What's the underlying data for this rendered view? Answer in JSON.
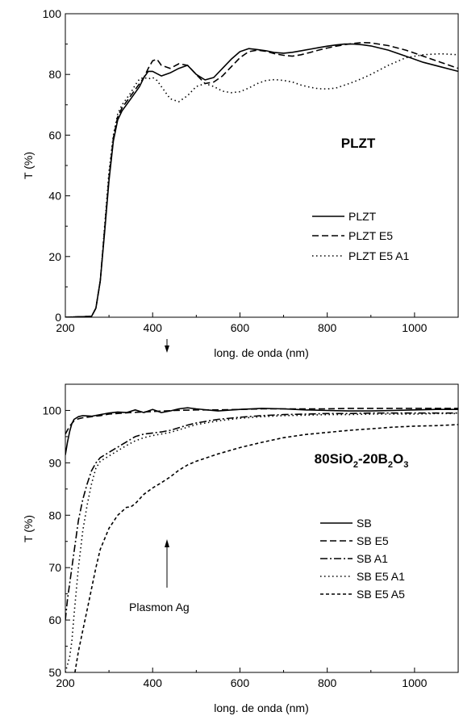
{
  "chart_data": [
    {
      "type": "line",
      "title": "PLZT",
      "xlabel": "long. de onda (nm)",
      "ylabel": "T (%)",
      "xlim": [
        200,
        1100
      ],
      "ylim": [
        0,
        100
      ],
      "xticks": [
        200,
        400,
        600,
        800,
        1000
      ],
      "yticks": [
        0,
        20,
        40,
        60,
        80,
        100
      ],
      "grid": false,
      "legend_position": "center-right",
      "annotations": [],
      "series": [
        {
          "name": "PLZT",
          "style": "solid",
          "x": [
            200,
            260,
            270,
            280,
            290,
            300,
            310,
            320,
            330,
            340,
            350,
            360,
            370,
            380,
            390,
            400,
            420,
            440,
            460,
            480,
            500,
            520,
            540,
            560,
            580,
            600,
            620,
            640,
            660,
            680,
            700,
            720,
            740,
            760,
            780,
            800,
            820,
            840,
            860,
            880,
            900,
            940,
            980,
            1020,
            1060,
            1100
          ],
          "y": [
            0,
            0.3,
            3,
            12,
            28,
            45,
            58,
            65,
            68,
            70,
            72,
            74,
            76,
            79,
            81,
            81,
            79.5,
            80.5,
            82,
            83,
            80,
            78.2,
            79,
            82,
            85,
            87.5,
            88.5,
            88.2,
            87.8,
            87.2,
            87,
            87.3,
            87.8,
            88.3,
            88.8,
            89.3,
            89.7,
            90,
            90,
            89.8,
            89.4,
            88,
            86,
            84,
            82.5,
            81
          ]
        },
        {
          "name": "PLZT E5",
          "style": "dashed",
          "x": [
            200,
            260,
            270,
            280,
            290,
            300,
            310,
            320,
            330,
            340,
            350,
            360,
            370,
            380,
            390,
            400,
            410,
            420,
            440,
            460,
            480,
            500,
            520,
            540,
            560,
            580,
            600,
            620,
            640,
            660,
            680,
            700,
            720,
            740,
            760,
            780,
            800,
            820,
            840,
            860,
            880,
            900,
            940,
            980,
            1020,
            1060,
            1100
          ],
          "y": [
            0,
            0.3,
            3,
            12,
            29,
            46,
            59,
            66,
            69,
            71,
            73,
            75,
            77,
            79,
            82,
            84.5,
            85,
            83,
            82,
            83.5,
            83,
            80,
            77,
            77.5,
            79.5,
            82.5,
            85.5,
            87.5,
            88,
            87.6,
            86.8,
            86.3,
            86,
            86.5,
            87.2,
            88,
            88.7,
            89.3,
            89.8,
            90.2,
            90.5,
            90.4,
            89.5,
            88,
            86,
            84,
            82
          ]
        },
        {
          "name": "PLZT E5 A1",
          "style": "dotted",
          "x": [
            200,
            260,
            270,
            280,
            290,
            300,
            310,
            320,
            330,
            340,
            350,
            360,
            370,
            380,
            390,
            400,
            410,
            420,
            440,
            460,
            480,
            500,
            520,
            540,
            560,
            580,
            600,
            620,
            640,
            660,
            680,
            700,
            720,
            740,
            760,
            780,
            800,
            820,
            840,
            860,
            880,
            900,
            940,
            980,
            1020,
            1060,
            1100
          ],
          "y": [
            0,
            0.3,
            3,
            12,
            30,
            48,
            60,
            67,
            70,
            72,
            74,
            76.5,
            78.5,
            79,
            78.5,
            79,
            78,
            76,
            72,
            71,
            73,
            76,
            77,
            76,
            74.5,
            74,
            74.3,
            75.5,
            77,
            78,
            78.3,
            78,
            77.5,
            76.5,
            75.8,
            75.3,
            75.2,
            75.5,
            76.5,
            77.5,
            78.7,
            80,
            83,
            85.5,
            86.5,
            86.8,
            86.5
          ]
        }
      ]
    },
    {
      "type": "line",
      "title": "80SiO2-20B2O3",
      "xlabel": "long. de onda (nm)",
      "ylabel": "T (%)",
      "xlim": [
        200,
        1100
      ],
      "ylim": [
        50,
        105
      ],
      "xticks": [
        200,
        400,
        600,
        800,
        1000
      ],
      "yticks": [
        50,
        60,
        70,
        80,
        90,
        100
      ],
      "grid": false,
      "legend_position": "center-right",
      "annotations": [
        "Plasmon Ag"
      ],
      "series": [
        {
          "name": "SB",
          "style": "solid",
          "x": [
            200,
            205,
            210,
            215,
            220,
            230,
            240,
            260,
            280,
            300,
            320,
            340,
            360,
            380,
            400,
            420,
            440,
            460,
            480,
            500,
            550,
            600,
            650,
            700,
            750,
            800,
            850,
            900,
            950,
            1000,
            1050,
            1100
          ],
          "y": [
            91.5,
            94,
            96,
            97.5,
            98.3,
            98.8,
            99,
            98.9,
            99.2,
            99.5,
            99.7,
            99.6,
            100.1,
            99.6,
            100.2,
            99.6,
            99.9,
            100.3,
            100.5,
            100.3,
            99.9,
            100.2,
            100.4,
            100.3,
            100.1,
            100,
            99.9,
            99.9,
            100,
            100.1,
            100.2,
            100.2
          ]
        },
        {
          "name": "SB E5",
          "style": "dashed",
          "x": [
            200,
            210,
            220,
            230,
            240,
            260,
            280,
            300,
            350,
            400,
            450,
            500,
            550,
            600,
            650,
            700,
            750,
            800,
            850,
            900,
            950,
            1000,
            1050,
            1100
          ],
          "y": [
            95.5,
            97,
            98,
            98.4,
            98.6,
            98.8,
            99,
            99.3,
            99.6,
            99.8,
            100,
            100.1,
            100.1,
            100.2,
            100.3,
            100.3,
            100.3,
            100.3,
            100.4,
            100.4,
            100.4,
            100.4,
            100.4,
            100.4
          ]
        },
        {
          "name": "SB A1",
          "style": "dashdot",
          "x": [
            200,
            205,
            210,
            215,
            220,
            230,
            240,
            250,
            260,
            270,
            280,
            300,
            320,
            340,
            360,
            380,
            400,
            420,
            440,
            460,
            480,
            500,
            550,
            600,
            650,
            700,
            750,
            800,
            850,
            900,
            950,
            1000,
            1050,
            1100
          ],
          "y": [
            60,
            64,
            67,
            70,
            73,
            79,
            83,
            86,
            88.5,
            90,
            91,
            92,
            93,
            94,
            95,
            95.5,
            95.7,
            95.9,
            96.2,
            96.7,
            97.2,
            97.6,
            98.3,
            98.7,
            99,
            99.2,
            99.3,
            99.4,
            99.4,
            99.5,
            99.5,
            99.5,
            99.5,
            99.5
          ]
        },
        {
          "name": "SB E5 A1",
          "style": "dotted",
          "x": [
            200,
            210,
            215,
            220,
            230,
            240,
            250,
            260,
            270,
            280,
            300,
            320,
            340,
            360,
            380,
            400,
            420,
            440,
            460,
            480,
            500,
            550,
            600,
            650,
            700,
            750,
            800,
            850,
            900,
            950,
            1000,
            1050,
            1100
          ],
          "y": [
            50,
            53,
            56,
            61,
            70,
            77,
            82,
            86,
            89,
            90.3,
            91.3,
            92.3,
            93.3,
            94.2,
            94.8,
            95.2,
            95.5,
            95.8,
            96.3,
            96.8,
            97.3,
            98,
            98.5,
            98.8,
            99,
            99.1,
            99.2,
            99.2,
            99.3,
            99.3,
            99.3,
            99.4,
            99.4
          ]
        },
        {
          "name": "SB E5 A5",
          "style": "short-dashed",
          "x": [
            222,
            230,
            240,
            250,
            260,
            270,
            280,
            300,
            320,
            340,
            350,
            360,
            380,
            400,
            420,
            440,
            460,
            480,
            500,
            550,
            600,
            650,
            700,
            750,
            800,
            850,
            900,
            950,
            1000,
            1050,
            1100
          ],
          "y": [
            50,
            54,
            58,
            62,
            66,
            70,
            73.5,
            77.5,
            80,
            81.5,
            81.6,
            82.2,
            84,
            85.2,
            86.2,
            87.3,
            88.6,
            89.6,
            90.3,
            91.7,
            92.9,
            93.9,
            94.8,
            95.4,
            95.8,
            96.2,
            96.5,
            96.8,
            97,
            97.1,
            97.3
          ]
        }
      ]
    }
  ],
  "plot1": {
    "title": "PLZT",
    "xlabel": "long. de onda (nm)",
    "ylabel": "T (%)",
    "legend": [
      "PLZT",
      "PLZT E5",
      "PLZT E5 A1"
    ]
  },
  "plot2": {
    "title_parts": {
      "a": "80SiO",
      "b": "2",
      "c": "-20B",
      "d": "2",
      "e": "O",
      "f": "3"
    },
    "xlabel": "long. de onda (nm)",
    "ylabel": "T (%)",
    "annotation": "Plasmon Ag",
    "legend": [
      "SB",
      "SB E5",
      "SB A1",
      "SB E5 A1",
      "SB E5 A5"
    ]
  }
}
